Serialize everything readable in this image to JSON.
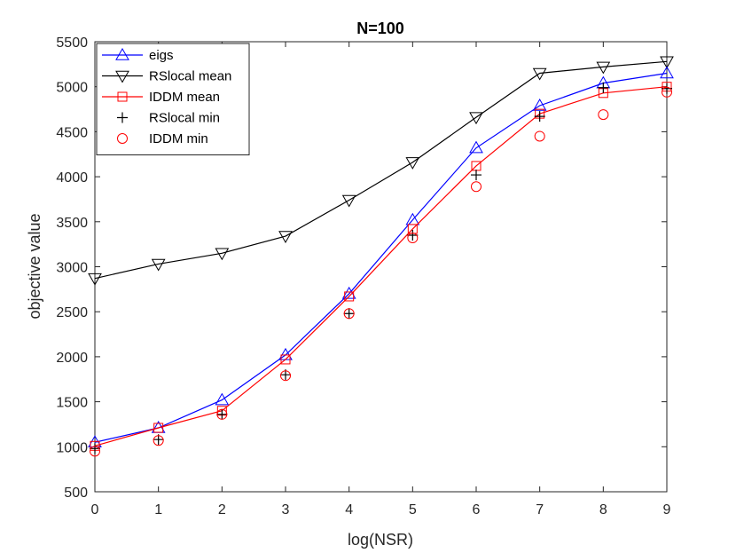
{
  "chart_data": {
    "type": "line",
    "title": "N=100",
    "xlabel": "log(NSR)",
    "ylabel": "objective value",
    "xlim": [
      0,
      9
    ],
    "ylim": [
      500,
      5500
    ],
    "xticks": [
      0,
      1,
      2,
      3,
      4,
      5,
      6,
      7,
      8,
      9
    ],
    "yticks": [
      500,
      1000,
      1500,
      2000,
      2500,
      3000,
      3500,
      4000,
      4500,
      5000,
      5500
    ],
    "grid": false,
    "legend_position": "top-left",
    "x": [
      0,
      1,
      2,
      3,
      4,
      5,
      6,
      7,
      8,
      9
    ],
    "series": [
      {
        "name": "eigs",
        "color": "#0000ff",
        "marker": "triangle-up",
        "line": true,
        "values": [
          1050,
          1210,
          1520,
          2020,
          2700,
          3520,
          4320,
          4790,
          5040,
          5150
        ]
      },
      {
        "name": "RSlocal mean",
        "color": "#000000",
        "marker": "triangle-down",
        "line": true,
        "values": [
          2870,
          3030,
          3150,
          3340,
          3740,
          4160,
          4660,
          5150,
          5220,
          5280
        ]
      },
      {
        "name": "IDDM mean",
        "color": "#ff0000",
        "marker": "square",
        "line": true,
        "values": [
          1010,
          1210,
          1400,
          1970,
          2670,
          3420,
          4120,
          4700,
          4930,
          5000
        ]
      },
      {
        "name": "RSlocal min",
        "color": "#000000",
        "marker": "plus",
        "line": false,
        "values": [
          980,
          1080,
          1360,
          1800,
          2480,
          3350,
          4020,
          4670,
          4990,
          4980
        ]
      },
      {
        "name": "IDDM min",
        "color": "#ff0000",
        "marker": "circle",
        "line": false,
        "values": [
          950,
          1070,
          1360,
          1790,
          2480,
          3320,
          3890,
          4450,
          4690,
          4940
        ]
      }
    ]
  }
}
